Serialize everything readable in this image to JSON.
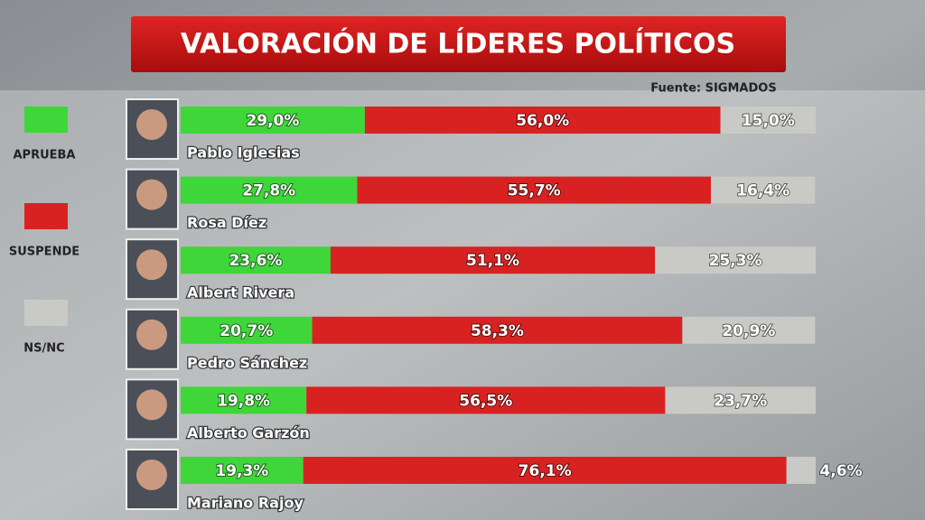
{
  "chart_data": {
    "type": "stacked-bar-horizontal",
    "title": "VALORACIÓN DE LÍDERES POLÍTICOS",
    "source": "Fuente: SIGMADOS",
    "categories": [
      "Pablo Iglesias",
      "Rosa Díez",
      "Albert Rivera",
      "Pedro Sánchez",
      "Alberto Garzón",
      "Mariano Rajoy"
    ],
    "xlim": [
      0,
      100
    ],
    "legend": "left",
    "series": [
      {
        "name": "APRUEBA",
        "color": "#3fd63a",
        "values": [
          29.0,
          27.8,
          23.6,
          20.7,
          19.8,
          19.3
        ],
        "value_labels": [
          "29,0%",
          "27,8%",
          "23,6%",
          "20,7%",
          "19,8%",
          "19,3%"
        ]
      },
      {
        "name": "SUSPENDE",
        "color": "#d82222",
        "values": [
          56.0,
          55.7,
          51.1,
          58.3,
          56.5,
          76.1
        ],
        "value_labels": [
          "56,0%",
          "55,7%",
          "51,1%",
          "58,3%",
          "56,5%",
          "76,1%"
        ]
      },
      {
        "name": "NS/NC",
        "color": "#c9c9c6",
        "values": [
          15.0,
          16.4,
          25.3,
          20.9,
          23.7,
          4.6
        ],
        "value_labels": [
          "15,0%",
          "16,4%",
          "25,3%",
          "20,9%",
          "23,7%",
          "4,6%"
        ]
      }
    ]
  }
}
